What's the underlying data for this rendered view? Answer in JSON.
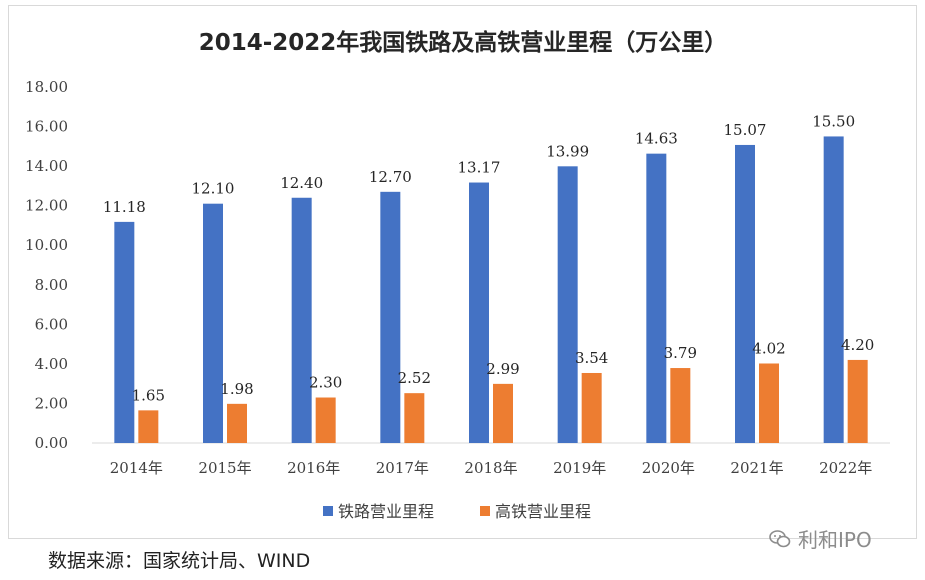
{
  "chart_data": {
    "type": "bar",
    "title": "2014-2022年我国铁路及高铁营业里程（万公里）",
    "categories": [
      "2014年",
      "2015年",
      "2016年",
      "2017年",
      "2018年",
      "2019年",
      "2020年",
      "2021年",
      "2022年"
    ],
    "series": [
      {
        "name": "铁路营业里程",
        "color": "#4472c4",
        "values": [
          11.18,
          12.1,
          12.4,
          12.7,
          13.17,
          13.99,
          14.63,
          15.07,
          15.5
        ]
      },
      {
        "name": "高铁营业里程",
        "color": "#ed7d31",
        "values": [
          1.65,
          1.98,
          2.3,
          2.52,
          2.99,
          3.54,
          3.79,
          4.02,
          4.2
        ]
      }
    ],
    "ylim": [
      0,
      18
    ],
    "yticks": [
      "0.00",
      "2.00",
      "4.00",
      "6.00",
      "8.00",
      "10.00",
      "12.00",
      "14.00",
      "16.00",
      "18.00"
    ],
    "grid": false,
    "legend": "bottom"
  },
  "source": "数据来源：国家统计局、WIND",
  "watermark": "利和IPO"
}
